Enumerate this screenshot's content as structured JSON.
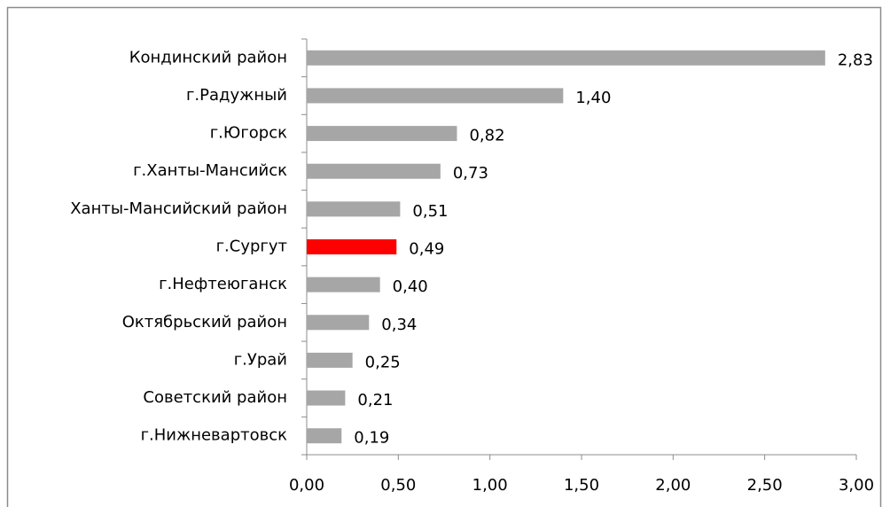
{
  "chart_data": {
    "type": "bar",
    "orientation": "horizontal",
    "categories": [
      "Кондинский район",
      "г.Радужный",
      "г.Югорск",
      "г.Ханты-Мансийск",
      "Ханты-Мансийский район",
      "г.Сургут",
      "г.Нефтеюганск",
      "Октябрьский район",
      "г.Урай",
      "Советский район",
      "г.Нижневартовск"
    ],
    "values": [
      2.83,
      1.4,
      0.82,
      0.73,
      0.51,
      0.49,
      0.4,
      0.34,
      0.25,
      0.21,
      0.19
    ],
    "value_labels": [
      "2,83",
      "1,40",
      "0,82",
      "0,73",
      "0,51",
      "0,49",
      "0,40",
      "0,34",
      "0,25",
      "0,21",
      "0,19"
    ],
    "colors": [
      "#a6a6a6",
      "#a6a6a6",
      "#a6a6a6",
      "#a6a6a6",
      "#a6a6a6",
      "#ff0000",
      "#a6a6a6",
      "#a6a6a6",
      "#a6a6a6",
      "#a6a6a6",
      "#a6a6a6"
    ],
    "xlim": [
      0,
      3
    ],
    "xticks": [
      {
        "value": 0,
        "label": "0,00"
      },
      {
        "value": 0.5,
        "label": "0,50"
      },
      {
        "value": 1,
        "label": "1,00"
      },
      {
        "value": 1.5,
        "label": "1,50"
      },
      {
        "value": 2,
        "label": "2,00"
      },
      {
        "value": 2.5,
        "label": "2,50"
      },
      {
        "value": 3,
        "label": "3,00"
      }
    ],
    "grid": false
  }
}
